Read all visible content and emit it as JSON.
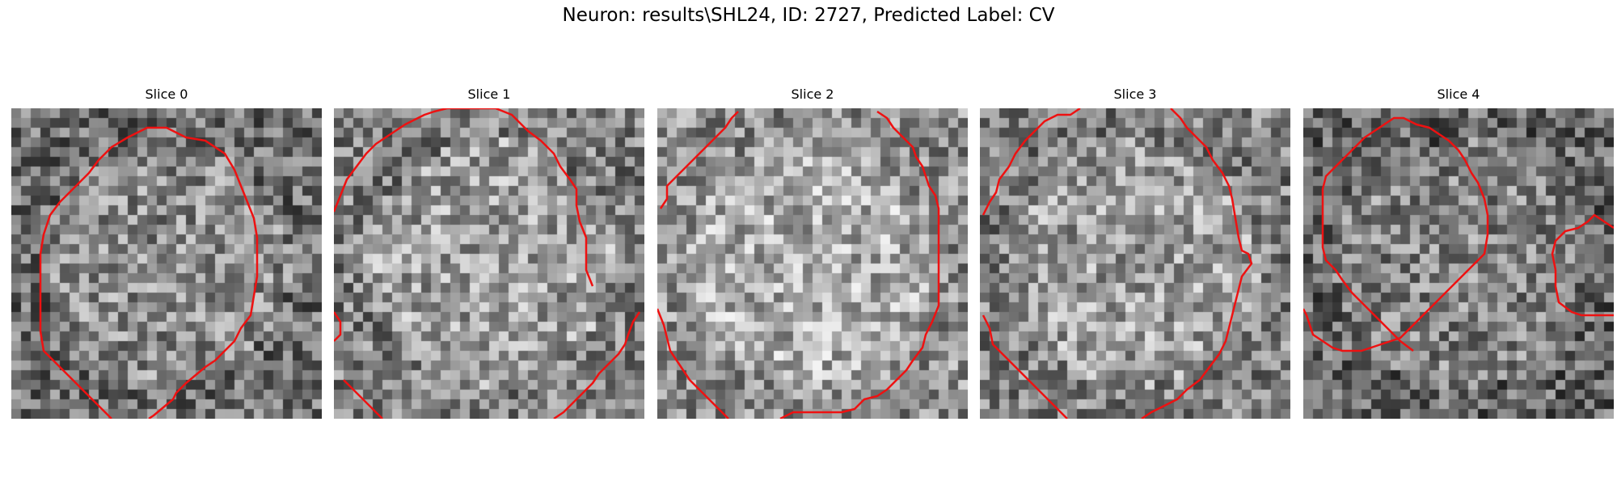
{
  "figure": {
    "title": "Neuron: results\\SHL24, ID: 2727, Predicted Label: CV"
  },
  "contour_color": "#ee1111",
  "panels": [
    {
      "title": "Slice 0"
    },
    {
      "title": "Slice 1"
    },
    {
      "title": "Slice 2"
    },
    {
      "title": "Slice 3"
    },
    {
      "title": "Slice 4"
    }
  ]
}
